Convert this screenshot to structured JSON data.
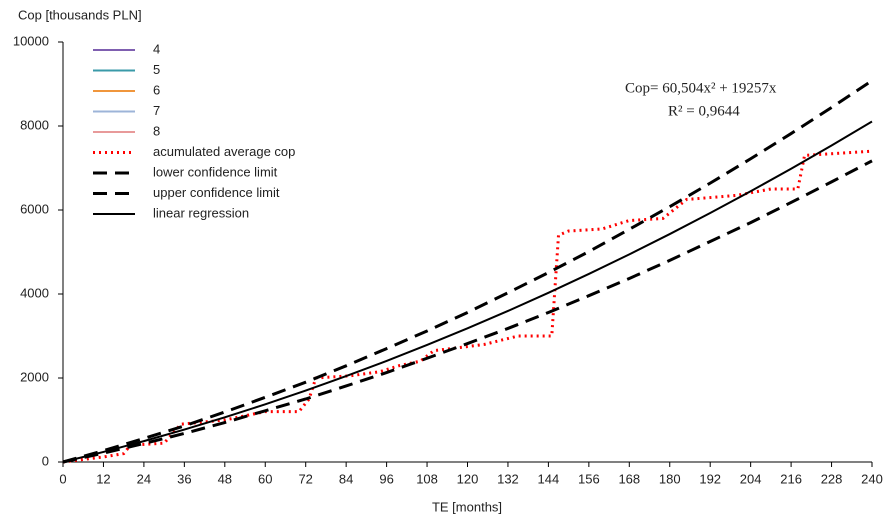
{
  "chart_data": {
    "type": "line",
    "y_label": "Cop [thousands PLN]",
    "x_label": "TE [months]",
    "annotations": [
      "Cop= 60,504x² + 19257x",
      "R² = 0,9644"
    ],
    "xlim": [
      0,
      240
    ],
    "xticks": [
      0,
      12,
      24,
      36,
      48,
      60,
      72,
      84,
      96,
      108,
      120,
      132,
      144,
      156,
      168,
      180,
      192,
      204,
      216,
      228,
      240
    ],
    "ylim": [
      0,
      10000
    ],
    "yticks": [
      0,
      2000,
      4000,
      6000,
      8000,
      10000
    ],
    "grid": false,
    "legend": "top-left",
    "series": [
      {
        "name": "4",
        "color": "#7f5fb0",
        "style": "solid"
      },
      {
        "name": "5",
        "color": "#3a9aa8",
        "style": "solid"
      },
      {
        "name": "6",
        "color": "#f0963c",
        "style": "solid"
      },
      {
        "name": "7",
        "color": "#9db4d8",
        "style": "solid"
      },
      {
        "name": "8",
        "color": "#e89a9a",
        "style": "solid"
      },
      {
        "name": "acumulated average cop",
        "color": "#ff0000",
        "style": "dotted",
        "x": [
          0,
          12,
          18,
          20,
          30,
          35,
          48,
          60,
          70,
          73,
          75,
          85,
          94,
          100,
          106,
          110,
          125,
          135,
          145,
          147,
          150,
          160,
          168,
          178,
          185,
          200,
          210,
          218,
          220,
          240
        ],
        "values": [
          0,
          120,
          200,
          400,
          450,
          900,
          1000,
          1200,
          1200,
          1500,
          2000,
          2050,
          2150,
          2300,
          2400,
          2650,
          2800,
          3000,
          3000,
          5400,
          5500,
          5550,
          5750,
          5800,
          6250,
          6350,
          6500,
          6500,
          7300,
          7400
        ]
      },
      {
        "name": "lower confidence limit",
        "color": "#000000",
        "style": "dashed",
        "x": [
          0,
          12,
          24,
          36,
          48,
          60,
          72,
          84,
          96,
          108,
          120,
          132,
          144,
          156,
          168,
          180,
          192,
          204,
          216,
          228,
          240
        ],
        "values": [
          0,
          210,
          440,
          680,
          940,
          1220,
          1500,
          1810,
          2130,
          2470,
          2820,
          3180,
          3560,
          3960,
          4370,
          4800,
          5250,
          5700,
          6180,
          6670,
          7170
        ]
      },
      {
        "name": "upper confidence limit",
        "color": "#000000",
        "style": "dashed",
        "x": [
          0,
          12,
          24,
          36,
          48,
          60,
          72,
          84,
          96,
          108,
          120,
          132,
          144,
          156,
          168,
          180,
          192,
          204,
          216,
          228,
          240
        ],
        "values": [
          0,
          270,
          560,
          860,
          1190,
          1540,
          1900,
          2290,
          2700,
          3120,
          3560,
          4030,
          4510,
          5010,
          5540,
          6080,
          6640,
          7220,
          7820,
          8440,
          9080
        ]
      },
      {
        "name": "linear regression",
        "color": "#000000",
        "style": "solid",
        "x": [
          0,
          12,
          24,
          36,
          48,
          60,
          72,
          84,
          96,
          108,
          120,
          132,
          144,
          156,
          168,
          180,
          192,
          204,
          216,
          228,
          240
        ],
        "values": [
          0,
          240,
          497,
          772,
          1064,
          1373,
          1700,
          2045,
          2406,
          2786,
          3182,
          3596,
          4028,
          4477,
          4943,
          5427,
          5928,
          6446,
          6983,
          7536,
          8107
        ]
      }
    ]
  }
}
